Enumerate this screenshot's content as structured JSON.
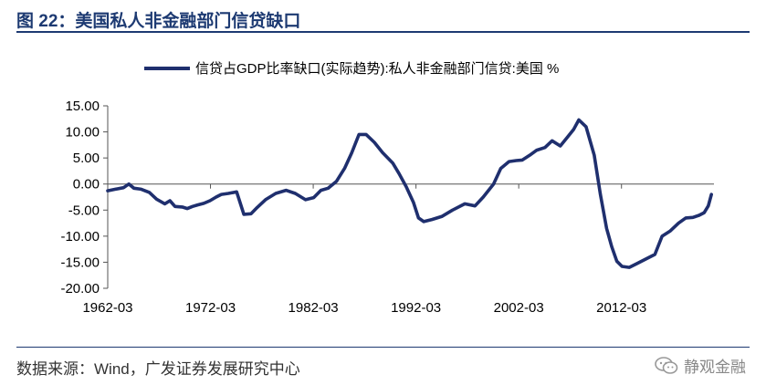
{
  "figure": {
    "title": "图 22：美国私人非金融部门信贷缺口",
    "source": "数据来源：Wind，广发证券发展研究中心",
    "watermark": "静观金融"
  },
  "colors": {
    "accent": "#1d3a72",
    "line": "#1f2f6e"
  },
  "chart_data": {
    "type": "line",
    "title": "",
    "xlabel": "",
    "ylabel": "",
    "ylim": [
      -20,
      15
    ],
    "yticks": [
      15,
      10,
      5,
      0,
      -5,
      -10,
      -15,
      -20
    ],
    "yticklabels": [
      "15.00",
      "10.00",
      "5.00",
      "0.00",
      "-5.00",
      "-10.00",
      "-15.00",
      "-20.00"
    ],
    "xlim": [
      1962.25,
      2021.25
    ],
    "xticks": [
      1962.25,
      1972.25,
      1982.25,
      1992.25,
      2002.25,
      2012.25
    ],
    "xticklabels": [
      "1962-03",
      "1972-03",
      "1982-03",
      "1992-03",
      "2002-03",
      "2012-03"
    ],
    "grid": false,
    "legend": "top",
    "series": [
      {
        "name": "信贷占GDP比率缺口(实际趋势):私人非金融部门信贷:美国 %",
        "x": [
          1962.25,
          1963.0,
          1963.8,
          1964.3,
          1964.8,
          1965.5,
          1966.3,
          1967.0,
          1967.8,
          1968.3,
          1968.8,
          1969.5,
          1970.0,
          1970.5,
          1971.0,
          1971.6,
          1972.2,
          1972.8,
          1973.3,
          1974.0,
          1974.8,
          1975.5,
          1976.2,
          1976.8,
          1977.6,
          1978.6,
          1979.6,
          1980.5,
          1981.5,
          1982.3,
          1983.0,
          1983.7,
          1984.5,
          1985.3,
          1986.0,
          1986.7,
          1987.4,
          1988.2,
          1989.0,
          1990.0,
          1990.6,
          1991.3,
          1992.0,
          1992.5,
          1993.0,
          1993.8,
          1994.8,
          1995.8,
          1997.0,
          1998.0,
          1998.8,
          1999.8,
          2000.5,
          2001.3,
          2002.0,
          2002.6,
          2003.3,
          2004.0,
          2004.8,
          2005.5,
          2006.3,
          2007.0,
          2007.6,
          2008.1,
          2008.8,
          2009.6,
          2010.2,
          2010.8,
          2011.3,
          2011.8,
          2012.3,
          2013.0,
          2013.8,
          2014.5,
          2015.5,
          2016.2,
          2017.0,
          2017.8,
          2018.5,
          2019.2,
          2019.8,
          2020.3,
          2020.7,
          2021.0
        ],
        "values": [
          -1.3,
          -1.0,
          -0.7,
          0.0,
          -0.8,
          -1.0,
          -1.6,
          -2.9,
          -3.8,
          -3.2,
          -4.3,
          -4.4,
          -4.7,
          -4.3,
          -4.0,
          -3.7,
          -3.2,
          -2.5,
          -2.0,
          -1.8,
          -1.5,
          -5.8,
          -5.7,
          -4.5,
          -3.0,
          -1.8,
          -1.2,
          -1.8,
          -3.0,
          -2.6,
          -1.2,
          -0.8,
          0.5,
          3.0,
          6.0,
          9.5,
          9.5,
          8.0,
          6.0,
          4.0,
          2.0,
          -0.5,
          -3.5,
          -6.5,
          -7.2,
          -6.8,
          -6.2,
          -5.0,
          -3.8,
          -4.2,
          -2.5,
          0.0,
          3.0,
          4.3,
          4.5,
          4.6,
          5.5,
          6.5,
          7.0,
          8.3,
          7.3,
          9.0,
          10.5,
          12.3,
          11.0,
          5.5,
          -2.0,
          -8.5,
          -12.0,
          -14.8,
          -15.8,
          -16.0,
          -15.2,
          -14.5,
          -13.5,
          -10.0,
          -9.0,
          -7.5,
          -6.5,
          -6.4,
          -6.0,
          -5.5,
          -4.2,
          -2.0
        ]
      }
    ]
  }
}
